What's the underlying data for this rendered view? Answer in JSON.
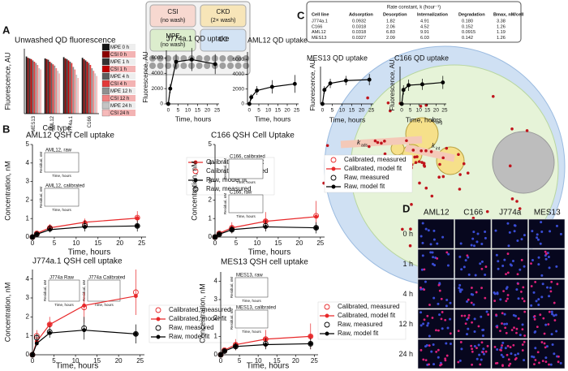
{
  "panels": {
    "a": "A",
    "b": "B",
    "c": "C",
    "d": "D"
  },
  "setup": {
    "boxes": [
      {
        "name": "CSI",
        "note": "(no wash)"
      },
      {
        "name": "CKD",
        "note": "(2× wash)"
      },
      {
        "name": "MPE",
        "note": "(no wash)"
      },
      {
        "name": "CC",
        "note": ""
      }
    ]
  },
  "table": {
    "title": "Rate constant, k (hour⁻¹)",
    "columns": [
      "Cell line",
      "Adsorption",
      "Desorption",
      "Internalization",
      "Degradation",
      "Bmax, nM/cell"
    ],
    "rows": [
      [
        "J774a.1",
        "0.0932",
        "1.82",
        "4.91",
        "0.180",
        "3.38"
      ],
      [
        "C166",
        "0.0318",
        "2.06",
        "4.52",
        "0.152",
        "1.26"
      ],
      [
        "AML12",
        "0.0318",
        "6.83",
        "9.91",
        "0.0915",
        "1.19"
      ],
      [
        "MES13",
        "0.0327",
        "2.09",
        "6.03",
        "0.142",
        "1.26"
      ]
    ]
  },
  "cell_diagram": {
    "rates": [
      {
        "symbol": "k",
        "sub": "ads"
      },
      {
        "symbol": "k",
        "sub": "des"
      },
      {
        "symbol": "k",
        "sub": "int"
      },
      {
        "symbol": "k",
        "sub": "deg"
      }
    ]
  },
  "micrographs": {
    "columns": [
      "AML12",
      "C166",
      "J774a",
      "MES13"
    ],
    "rows": [
      "0 h",
      "1 h",
      "4 h",
      "12 h",
      "24 h"
    ]
  },
  "chart_data": [
    {
      "type": "bar",
      "title": "Unwashed QD fluorescence",
      "ylabel": "Fluorescence, AU",
      "xlabel": "Cell type",
      "categories": [
        "MES13",
        "AML12",
        "J774a.1",
        "C166"
      ],
      "ylim": [
        0,
        100
      ],
      "series": [
        {
          "name": "MPE 0 h",
          "color": "#151515",
          "values": [
            88,
            85,
            87,
            86
          ]
        },
        {
          "name": "CSI 0 h",
          "color": "#8b0000",
          "values": [
            86,
            84,
            85,
            84
          ]
        },
        {
          "name": "MPE 1 h",
          "color": "#333333",
          "values": [
            85,
            83,
            84,
            82
          ]
        },
        {
          "name": "CSI 1 h",
          "color": "#c00000",
          "values": [
            84,
            80,
            82,
            80
          ]
        },
        {
          "name": "MPE 4 h",
          "color": "#5e5e5e",
          "values": [
            82,
            78,
            80,
            78
          ]
        },
        {
          "name": "CSI 4 h",
          "color": "#e23a3a",
          "values": [
            80,
            76,
            78,
            75
          ]
        },
        {
          "name": "MPE 12 h",
          "color": "#8f8f8f",
          "values": [
            78,
            74,
            72,
            70
          ]
        },
        {
          "name": "CSI 12 h",
          "color": "#ef8080",
          "values": [
            75,
            70,
            68,
            66
          ]
        },
        {
          "name": "MPE 24 h",
          "color": "#c4c4c4",
          "values": [
            70,
            66,
            60,
            62
          ]
        },
        {
          "name": "CSI 24 h",
          "color": "#f6b9b9",
          "values": [
            68,
            62,
            55,
            58
          ]
        }
      ]
    },
    {
      "type": "line",
      "title": "J774a.1 QD uptake",
      "ylabel": "Fluorescence, AU",
      "xlabel": "Time, hours",
      "xlim": [
        -1,
        26
      ],
      "xticks": [
        0,
        5,
        10,
        15,
        20,
        25
      ],
      "ylim": [
        0,
        7000
      ],
      "yticks": [
        0,
        2000,
        4000,
        6000
      ],
      "series": [
        {
          "color": "#000000",
          "x": [
            0,
            1,
            4,
            12,
            24
          ],
          "values": [
            0,
            2000,
            5500,
            5800,
            5200
          ],
          "errors": [
            0,
            600,
            1000,
            1500,
            1300
          ],
          "line": true,
          "marker": "filled"
        }
      ]
    },
    {
      "type": "line",
      "title": "AML12 QD uptake",
      "xlabel": "Time, hours",
      "xlim": [
        -1,
        26
      ],
      "xticks": [
        0,
        5,
        10,
        15,
        20,
        25
      ],
      "ylim": [
        0,
        7000
      ],
      "yticks": [
        0,
        2000,
        4000,
        6000
      ],
      "series": [
        {
          "color": "#000000",
          "x": [
            0,
            1,
            4,
            12,
            24
          ],
          "values": [
            0,
            900,
            1800,
            2300,
            2700
          ],
          "errors": [
            0,
            400,
            600,
            900,
            1200
          ],
          "line": true,
          "marker": "filled"
        }
      ]
    },
    {
      "type": "line",
      "title": "MES13 QD uptake",
      "ylabel": "Fluorescence, AU",
      "xlabel": "Time, hours",
      "xlim": [
        -1,
        26
      ],
      "xticks": [
        0,
        5,
        10,
        15,
        20,
        25
      ],
      "ylim": [
        0,
        4000
      ],
      "series": [
        {
          "color": "#000000",
          "x": [
            0,
            1,
            4,
            12,
            24
          ],
          "values": [
            0,
            1500,
            2200,
            2500,
            2600
          ],
          "errors": [
            0,
            400,
            500,
            500,
            600
          ],
          "line": true,
          "marker": "filled"
        }
      ]
    },
    {
      "type": "line",
      "title": "C166 QD uptake",
      "ylabel": "Fluorescence, AU",
      "xlabel": "Time, hours",
      "xlim": [
        -1,
        26
      ],
      "xticks": [
        0,
        5,
        10,
        15,
        20,
        25
      ],
      "ylim": [
        0,
        4000
      ],
      "series": [
        {
          "color": "#000000",
          "x": [
            0,
            1,
            4,
            12,
            24
          ],
          "values": [
            0,
            1500,
            2000,
            2100,
            2300
          ],
          "errors": [
            0,
            500,
            600,
            600,
            700
          ],
          "line": true,
          "marker": "filled"
        }
      ]
    },
    {
      "type": "line",
      "title": "AML12 QSH Cell uptake",
      "ylabel": "Concentration, nM",
      "xlabel": "Time, hours",
      "xlim": [
        0,
        26
      ],
      "xticks": [
        0,
        5,
        10,
        15,
        20,
        25
      ],
      "ylim": [
        0,
        5
      ],
      "yticks": [
        0,
        1,
        2,
        3,
        4,
        5
      ],
      "insets": [
        {
          "title": "AML12, raw",
          "ylabel": "Residual, nM",
          "xlabel": "Time, hours"
        },
        {
          "title": "AML12, calibrated",
          "ylabel": "Residual, nM",
          "xlabel": "Time, hours"
        }
      ],
      "series": [
        {
          "name": "Calibrated, model fit",
          "color": "#e8292b",
          "x": [
            0,
            1,
            4,
            12,
            24
          ],
          "values": [
            0,
            0.2,
            0.5,
            0.8,
            1.02
          ],
          "line": true,
          "marker": "filled"
        },
        {
          "name": "Calibrated, measured",
          "color": "#e8292b",
          "x": [
            0,
            1,
            4,
            12,
            24
          ],
          "values": [
            0,
            0.2,
            0.5,
            0.7,
            1.05
          ],
          "errors": [
            0,
            0.1,
            0.2,
            0.3,
            0.35
          ],
          "line": false,
          "marker": "open"
        },
        {
          "name": "Raw, model fit",
          "color": "#000000",
          "x": [
            0,
            1,
            4,
            12,
            24
          ],
          "values": [
            0,
            0.15,
            0.4,
            0.55,
            0.6
          ],
          "line": true,
          "marker": "filled"
        },
        {
          "name": "Raw, measured",
          "color": "#000000",
          "x": [
            0,
            1,
            4,
            12,
            24
          ],
          "values": [
            0,
            0.15,
            0.45,
            0.6,
            0.6
          ],
          "errors": [
            0,
            0.1,
            0.2,
            0.3,
            0.3
          ],
          "line": false,
          "marker": "open"
        }
      ]
    },
    {
      "type": "line",
      "title": "C166 QSH Cell Uptake",
      "ylabel": "Concentration, nM",
      "xlabel": "Time, hours",
      "xlim": [
        0,
        26
      ],
      "xticks": [
        0,
        5,
        10,
        15,
        20,
        25
      ],
      "ylim": [
        0,
        5
      ],
      "yticks": [
        0,
        1,
        2,
        3,
        4,
        5
      ],
      "insets": [
        {
          "title": "C166, calibrated",
          "ylabel": "Residual, nM",
          "xlabel": "Time, hours"
        },
        {
          "title": "C166, raw",
          "ylabel": "Residual, nM",
          "xlabel": "Time, hours"
        }
      ],
      "series": [
        {
          "name": "Calibrated, measured",
          "color": "#e8292b",
          "x": [
            0,
            1,
            4,
            12,
            24
          ],
          "values": [
            0,
            0.2,
            0.5,
            0.85,
            1.15
          ],
          "errors": [
            0,
            0.1,
            0.3,
            0.5,
            0.8
          ],
          "line": false,
          "marker": "open"
        },
        {
          "name": "Calibrated, model fit",
          "color": "#e8292b",
          "x": [
            0,
            1,
            4,
            12,
            24
          ],
          "values": [
            0,
            0.2,
            0.5,
            0.85,
            1.1
          ],
          "line": true,
          "marker": "filled"
        },
        {
          "name": "Raw, measured",
          "color": "#000000",
          "x": [
            0,
            1,
            4,
            12,
            24
          ],
          "values": [
            0,
            0.15,
            0.4,
            0.6,
            0.5
          ],
          "errors": [
            0,
            0.1,
            0.2,
            0.3,
            0.3
          ],
          "line": false,
          "marker": "open"
        },
        {
          "name": "Raw, model fit",
          "color": "#000000",
          "x": [
            0,
            1,
            4,
            12,
            24
          ],
          "values": [
            0,
            0.15,
            0.4,
            0.55,
            0.5
          ],
          "line": true,
          "marker": "filled"
        }
      ]
    },
    {
      "type": "line",
      "title": "J774a.1 QSH cell uptake",
      "ylabel": "Concentration, nM",
      "xlabel": "Time, hours",
      "xlim": [
        0,
        26
      ],
      "xticks": [
        0,
        5,
        10,
        15,
        20,
        25
      ],
      "ylim": [
        0,
        4.5
      ],
      "yticks": [
        0,
        1,
        2,
        3,
        4
      ],
      "insets": [
        {
          "title": "J774a Raw",
          "ylabel": "Residual, nM",
          "xlabel": "Time, hours"
        },
        {
          "title": "J774a Calibrated",
          "ylabel": "Residual, nM",
          "xlabel": "Time, hours"
        }
      ],
      "series": [
        {
          "name": "Calibrated, measured",
          "color": "#e8292b",
          "x": [
            0,
            1,
            4,
            12,
            24
          ],
          "values": [
            0,
            1.0,
            1.6,
            2.5,
            3.3
          ],
          "errors": [
            0,
            0.3,
            0.4,
            0.8,
            1.2
          ],
          "line": false,
          "marker": "open"
        },
        {
          "name": "Calibrated, model fit",
          "color": "#e8292b",
          "x": [
            0,
            1,
            4,
            12,
            24
          ],
          "values": [
            0,
            0.7,
            1.6,
            2.6,
            3.1
          ],
          "line": true,
          "marker": "filled"
        },
        {
          "name": "Raw, measured",
          "color": "#000000",
          "x": [
            0,
            1,
            4,
            12,
            24
          ],
          "values": [
            0,
            0.9,
            1.2,
            1.4,
            1.1
          ],
          "errors": [
            0,
            0.2,
            0.3,
            0.6,
            0.5
          ],
          "line": false,
          "marker": "open"
        },
        {
          "name": "Raw, model fit",
          "color": "#000000",
          "x": [
            0,
            1,
            4,
            12,
            24
          ],
          "values": [
            0,
            0.6,
            1.15,
            1.3,
            1.1
          ],
          "line": true,
          "marker": "filled"
        }
      ]
    },
    {
      "type": "line",
      "title": "MES13 QSH cell uptake",
      "ylabel": "Concentration, nM",
      "xlabel": "Time, hours",
      "xlim": [
        0,
        26
      ],
      "xticks": [
        0,
        5,
        10,
        15,
        20,
        25
      ],
      "ylim": [
        0,
        4.5
      ],
      "yticks": [
        0,
        1,
        2,
        3,
        4
      ],
      "insets": [
        {
          "title": "MES13, raw",
          "ylabel": "Residual, nM",
          "xlabel": "Time, hours"
        },
        {
          "title": "MES13, calibrated",
          "ylabel": "Residual, nM",
          "xlabel": "Time, hours"
        }
      ],
      "series": [
        {
          "name": "Calibrated, measured",
          "color": "#e8292b",
          "x": [
            0,
            1,
            4,
            12,
            24
          ],
          "values": [
            0,
            0.25,
            0.55,
            0.85,
            1.0
          ],
          "errors": [
            0,
            0.1,
            0.3,
            0.5,
            0.7
          ],
          "line": false,
          "marker": "open"
        },
        {
          "name": "Calibrated, model fit",
          "color": "#e8292b",
          "x": [
            0,
            1,
            4,
            12,
            24
          ],
          "values": [
            0,
            0.25,
            0.55,
            0.85,
            1.0
          ],
          "line": true,
          "marker": "filled"
        },
        {
          "name": "Raw, measured",
          "color": "#000000",
          "x": [
            0,
            1,
            4,
            12,
            24
          ],
          "values": [
            0,
            0.2,
            0.45,
            0.6,
            0.6
          ],
          "errors": [
            0,
            0.1,
            0.2,
            0.3,
            0.3
          ],
          "line": false,
          "marker": "open"
        },
        {
          "name": "Raw, model fit",
          "color": "#000000",
          "x": [
            0,
            1,
            4,
            12,
            24
          ],
          "values": [
            0,
            0.2,
            0.45,
            0.55,
            0.6
          ],
          "line": true,
          "marker": "filled"
        }
      ]
    }
  ]
}
